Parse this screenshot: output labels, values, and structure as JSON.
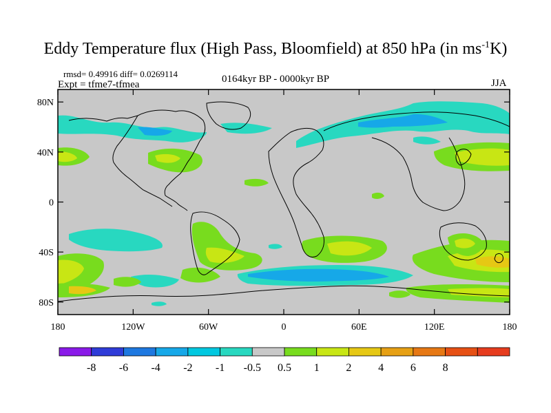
{
  "title": {
    "main": "Eddy Temperature flux (High Pass, Bloomfield) at 850 hPa (in ms",
    "sup": "-1",
    "suffix": "K)"
  },
  "stats_line": "rmsd= 0.49916 diff= 0.0269114",
  "experiment": "Expt = tfme7-tfmea",
  "period": "0164kyr BP - 0000kyr BP",
  "season": "JJA",
  "axes": {
    "lat_ticks": [
      {
        "value": 80,
        "label": "80N"
      },
      {
        "value": 40,
        "label": "40N"
      },
      {
        "value": 0,
        "label": "0"
      },
      {
        "value": -40,
        "label": "40S"
      },
      {
        "value": -80,
        "label": "80S"
      }
    ],
    "lon_ticks": [
      {
        "value": -180,
        "label": "180"
      },
      {
        "value": -120,
        "label": "120W"
      },
      {
        "value": -60,
        "label": "60W"
      },
      {
        "value": 0,
        "label": "0"
      },
      {
        "value": 60,
        "label": "60E"
      },
      {
        "value": 120,
        "label": "120E"
      },
      {
        "value": 180,
        "label": "180"
      }
    ]
  },
  "colorbar": {
    "colors": [
      "#8a1ae8",
      "#2f3cd8",
      "#1e78e0",
      "#16a8e8",
      "#00c8e0",
      "#28d8c0",
      "#c8c8c8",
      "#78dc1e",
      "#c8e614",
      "#e6c814",
      "#e6a014",
      "#e67814",
      "#e65014",
      "#e63c1e"
    ],
    "labels": [
      "-8",
      "-6",
      "-4",
      "-2",
      "-1",
      "-0.5",
      "0.5",
      "1",
      "2",
      "4",
      "6",
      "8"
    ]
  },
  "chart_data": {
    "type": "heatmap",
    "projection": "equirectangular",
    "lon_range": [
      -180,
      180
    ],
    "lat_range": [
      -90,
      90
    ],
    "units": "m s-1 K",
    "levels": [
      -8,
      -6,
      -4,
      -2,
      -1,
      -0.5,
      0.5,
      1,
      2,
      4,
      6,
      8
    ],
    "anomaly_regions": [
      {
        "name": "north-atlantic-negative",
        "lon": [
          -170,
          -95
        ],
        "lat": [
          55,
          70
        ],
        "value": -0.75
      },
      {
        "name": "arctic-siberia-negative",
        "lon": [
          10,
          170
        ],
        "lat": [
          45,
          70
        ],
        "value": -0.75
      },
      {
        "name": "north-atlantic-positive",
        "lon": [
          -110,
          -60
        ],
        "lat": [
          30,
          45
        ],
        "value": 0.75
      },
      {
        "name": "north-pacific-east-positive",
        "lon": [
          140,
          180
        ],
        "lat": [
          30,
          45
        ],
        "value": 1.5
      },
      {
        "name": "north-atlantic-far-west-positive",
        "lon": [
          -180,
          -155
        ],
        "lat": [
          35,
          45
        ],
        "value": 1.5
      },
      {
        "name": "south-pacific-negative",
        "lon": [
          -165,
          -100
        ],
        "lat": [
          -40,
          -20
        ],
        "value": -0.75
      },
      {
        "name": "southern-ocean-negative",
        "lon": [
          -30,
          80
        ],
        "lat": [
          -68,
          -55
        ],
        "value": -1.5
      },
      {
        "name": "south-atlantic-positive",
        "lon": [
          -110,
          -30
        ],
        "lat": [
          -75,
          -30
        ],
        "value": 1.5
      },
      {
        "name": "south-africa-positive",
        "lon": [
          20,
          70
        ],
        "lat": [
          -45,
          -30
        ],
        "value": 1.5
      },
      {
        "name": "south-indian-positive",
        "lon": [
          100,
          180
        ],
        "lat": [
          -75,
          -25
        ],
        "value": 1.5
      },
      {
        "name": "south-pacific-far-west-positive",
        "lon": [
          -180,
          -130
        ],
        "lat": [
          -75,
          -40
        ],
        "value": 1.5
      }
    ]
  }
}
